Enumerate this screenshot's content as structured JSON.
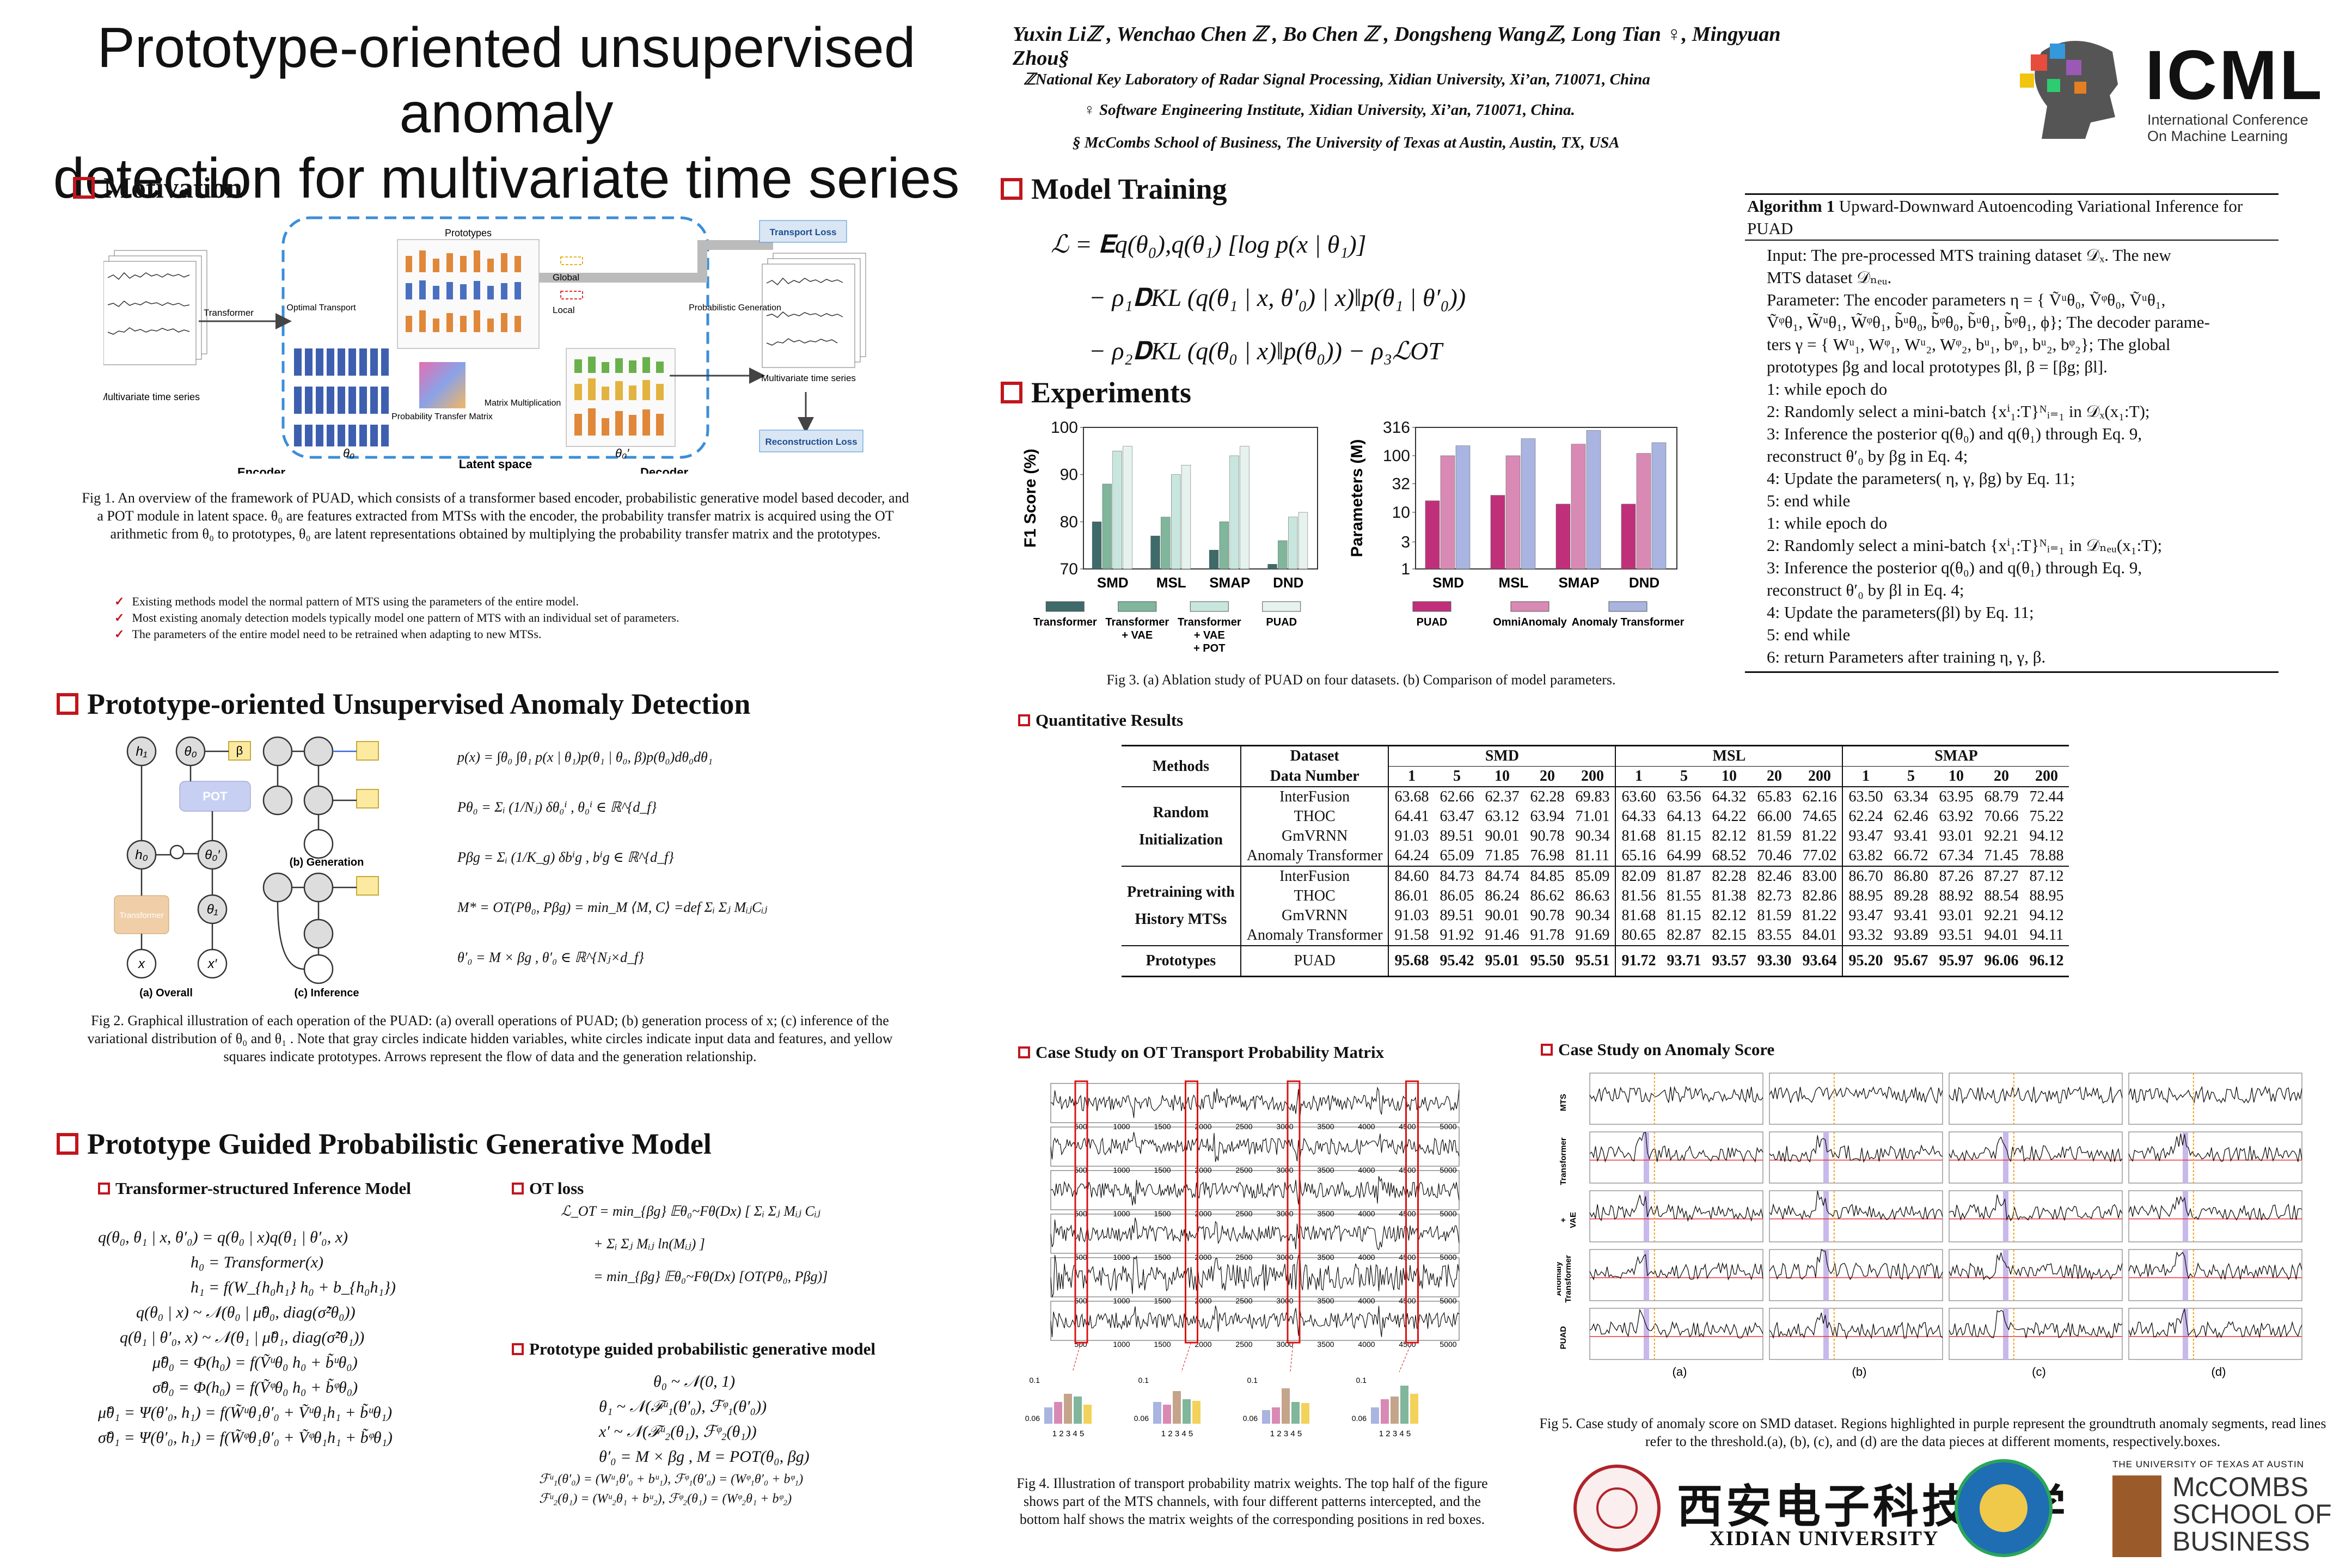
{
  "title_line1": "Prototype-oriented unsupervised anomaly",
  "title_line2": "detection for multivariate time series",
  "authors": "Yuxin Liℤ , Wenchao Chen ℤ , Bo Chen ℤ , Dongsheng Wangℤ, Long Tian ♀, Mingyuan Zhou§",
  "affil1": "ℤNational Key Laboratory of Radar Signal Processing, Xidian University, Xi’an, 710071, China",
  "affil2": "♀ Software Engineering Institute, Xidian University, Xi’an, 710071, China.",
  "affil3": "§ McCombs School of Business,  The University of Texas at Austin,  Austin, TX,  USA",
  "icml": {
    "name": "ICML",
    "line1": "International Conference",
    "line2": "On Machine Learning"
  },
  "sections": {
    "motivation": "Motivation",
    "puad": "Prototype-oriented Unsupervised Anomaly Detection",
    "pgpgm": "Prototype Guided Probabilistic Generative Model",
    "training": "Model Training",
    "experiments": "Experiments"
  },
  "fig1": {
    "labels": {
      "encoder": "Encoder",
      "decoder": "Decoder",
      "latent": "Latent space",
      "transformer": "Transformer",
      "ot": "Optimal Transport",
      "prototypes": "Prototypes",
      "global": "Global",
      "local": "Local",
      "ptm": "Probability Transfer Matrix",
      "mm": "Matrix Multiplication",
      "pg": "Probabilistic Generation",
      "mts": "Multivariate time series",
      "rts": "Multivariate time series",
      "tl": "Transport Loss",
      "rl": "Reconstruction Loss",
      "theta0": "θ₀",
      "theta0p": "θ₀′"
    },
    "caption": "Fig 1. An overview of the framework of PUAD, which consists of a transformer based encoder, probabilistic generative model based decoder, and a POT module in latent space. θ₀ are features extracted from MTSs with the encoder, the probability transfer matrix is acquired using the OT arithmetic from θ₀ to prototypes, θ₀ are latent representations obtained by multiplying the probability transfer matrix and the prototypes."
  },
  "bullets": [
    "Existing methods model the normal pattern of MTS using the parameters of the entire model.",
    "Most existing anomaly detection models typically model one pattern of MTS with an individual set of parameters.",
    "The parameters of the entire model need to be retrained when adapting to new MTSs."
  ],
  "fig2": {
    "labels": {
      "a": "(a) Overall",
      "b": "(b) Generation",
      "c": "(c) Inference",
      "transformer": "Transformer",
      "pot": "POT"
    },
    "caption": "Fig 2. Graphical illustration of each operation of the PUAD: (a) overall operations of PUAD; (b) generation process of x; (c) inference of the variational distribution of θ₀ and θ₁ . Note that gray circles indicate hidden variables, white circles indicate input data and features, and yellow squares indicate prototypes. Arrows represent the flow of data and the generation relationship."
  },
  "puad_eqs": [
    "p(x) = ∫θ₀ ∫θ₁ p(x | θ₁)p(θ₁ | θ₀, β)p(θ₀)dθ₀dθ₁",
    "Pθ₀ = Σᵢ (1/Nⱼ) δθ₀ⁱ ,  θ₀ⁱ ∈ ℝ^{d_f}",
    "Pβg = Σᵢ (1/K_g) δbⁱg ,  bⁱg ∈ ℝ^{d_f}",
    "M* = OT(Pθ₀, Pβg) = min_M ⟨M, C⟩ =def Σᵢ Σⱼ MᵢⱼCᵢⱼ",
    "θ′₀ = M × βg ,  θ′₀ ∈ ℝ^{Nⱼ×d_f}"
  ],
  "inference": {
    "title": "Transformer-structured Inference Model",
    "eqs": [
      "q(θ₀, θ₁ | x, θ′₀) = q(θ₀ | x)q(θ₁ | θ′₀, x)",
      "h₀ = Transformer(x)",
      "h₁ = f(W_{h₀h₁} h₀ + b_{h₀h₁})",
      "q(θ₀ | x) ~ 𝒩(θ₀ | μ̃θ₀, diag(σ̃²θ₀))",
      "q(θ₁ | θ′₀, x) ~ 𝒩(θ₁ | μ̃θ₁, diag(σ̃²θ₁))",
      "μ̃θ₀ = Φ(h₀) = f(Ṽᵘθ₀ h₀ + b̃ᵘθ₀)",
      "σ̃θ₀ = Φ(h₀) = f(Ṽᵠθ₀ h₀ + b̃ᵠθ₀)",
      "μ̃θ₁ = Ψ(θ′₀, h₁) = f(W̃ᵘθ₁θ′₀ + Ṽᵘθ₁h₁ + b̃ᵘθ₁)",
      "σ̃θ₁ = Ψ(θ′₀, h₁) = f(W̃ᵠθ₁θ′₀ + Ṽᵠθ₁h₁ + b̃ᵠθ₁)"
    ]
  },
  "otloss": {
    "title": "OT loss",
    "eqs": [
      "ℒ_OT = min_{βg} 𝔼θ₀~Fθ(Dx) [ Σᵢ Σⱼ Mᵢⱼ Cᵢⱼ",
      "+ Σᵢ Σⱼ Mᵢⱼ ln(Mᵢⱼ) ]",
      "= min_{βg} 𝔼θ₀~Fθ(Dx) [OT(Pθ₀, Pβg)]"
    ]
  },
  "genmodel": {
    "title": "Prototype guided probabilistic generative model",
    "eqs": [
      "θ₀ ~ 𝒩(0, 1)",
      "θ₁ ~ 𝒩(ℱᵘ₁(θ′₀), ℱᵠ₁(θ′₀))",
      "x′ ~ 𝒩(ℱᵘ₂(θ₁), ℱᵠ₂(θ₁))",
      "θ′₀ = M × βg , M = POT(θ₀, βg)",
      "ℱᵘ₁(θ′₀) = (Wᵘ₁θ′₀ + bᵘ₁), ℱᵠ₁(θ′₀) = (Wᵠ₁θ′₀ + bᵠ₁)",
      "ℱᵘ₂(θ₁) = (Wᵘ₂θ₁ + bᵘ₂), ℱᵠ₂(θ₁) = (Wᵠ₂θ₁ + bᵠ₂)"
    ]
  },
  "training_eqs": [
    "ℒ = 𝐄q(θ₀),q(θ₁) [log p(x | θ₁)]",
    "− ρ₁𝐃KL (q(θ₁ | x, θ′₀) | x)‖p(θ₁ | θ′₀))",
    "− ρ₂𝐃KL (q(θ₀ | x)‖p(θ₀)) − ρ₃ℒOT"
  ],
  "algorithm": {
    "title_bold": "Algorithm 1",
    "title_rest": "Upward-Downward Autoencoding Variational Inference for PUAD",
    "lines": [
      "Input: The pre-processed MTS training dataset 𝒟ₓ. The new",
      "MTS dataset 𝒟ₙₑᵤ.",
      "Parameter: The encoder parameters η = { Ṽᵘθ₀, Ṽᵠθ₀, Ṽᵘθ₁,",
      "Ṽᵠθ₁, W̃ᵘθ₁, W̃ᵠθ₁, b̃ᵘθ₀, b̃ᵠθ₀, b̃ᵘθ₁, b̃ᵠθ₁, ϕ}; The decoder parame-",
      "ters γ = { Wᵘ₁, Wᵠ₁, Wᵘ₂, Wᵠ₂, bᵘ₁, bᵠ₁, bᵘ₂, bᵠ₂}; The global",
      "prototypes βg and local prototypes βl, β = [βg; βl].",
      "1:  while epoch do",
      "2:      Randomly select a mini-batch {xⁱ₁:T}ᴺᵢ₌₁ in 𝒟ₓ(x₁:T);",
      "3:      Inference the posterior q(θ₀) and q(θ₁) through Eq. 9,",
      "           reconstruct θ′₀ by βg in Eq. 4;",
      "4:      Update the parameters( η, γ, βg) by Eq. 11;",
      "5:  end while",
      "1:  while epoch do",
      "2:      Randomly select a mini-batch {xⁱ₁:T}ᴺᵢ₌₁ in 𝒟ₙₑᵤ(x₁:T);",
      "3:      Inference the posterior q(θ₀) and q(θ₁) through Eq. 9,",
      "           reconstruct θ′₀ by βl in Eq. 4;",
      "4:      Update the parameters(βl) by Eq. 11;",
      "5:  end while",
      "6:  return Parameters after training η, γ, β."
    ]
  },
  "fig3": {
    "caption": "Fig 3. (a) Ablation study of PUAD on four datasets. (b) Comparison of model parameters.",
    "a_label": "(a)",
    "b_label": "(b)"
  },
  "chart_data": [
    {
      "type": "bar",
      "title": "",
      "ylabel": "F1 Score (%)",
      "categories": [
        "SMD",
        "MSL",
        "SMAP",
        "DND"
      ],
      "ylim": [
        70,
        100
      ],
      "yticks": [
        "100",
        "90",
        "80",
        "70"
      ],
      "series": [
        {
          "name": "Transformer",
          "color": "#3e6a6a",
          "values": [
            80,
            77,
            74,
            71
          ]
        },
        {
          "name": "Transformer + VAE",
          "color": "#80b69c",
          "values": [
            88,
            81,
            80,
            76
          ]
        },
        {
          "name": "Transformer + VAE + POT",
          "color": "#c8e6de",
          "values": [
            95,
            90,
            94,
            81
          ]
        },
        {
          "name": "PUAD",
          "color": "#e6f2ee",
          "values": [
            96,
            92,
            96,
            82
          ]
        }
      ]
    },
    {
      "type": "bar",
      "title": "",
      "ylabel": "Parameters (M)",
      "scale": "log",
      "categories": [
        "SMD",
        "MSL",
        "SMAP",
        "DND"
      ],
      "ylim": [
        1,
        316
      ],
      "yticks": [
        "316",
        "100",
        "32",
        "10",
        "3",
        "1"
      ],
      "series": [
        {
          "name": "PUAD",
          "color": "#c0307a",
          "values": [
            16,
            20,
            14,
            14
          ]
        },
        {
          "name": "OmniAnomaly",
          "color": "#d88ab4",
          "values": [
            100,
            100,
            160,
            110
          ]
        },
        {
          "name": "Anomaly Transformer",
          "color": "#a9b4e0",
          "values": [
            150,
            200,
            280,
            170
          ]
        }
      ]
    }
  ],
  "quant": {
    "title": "Quantitative Results",
    "h_methods": "Methods",
    "h_dataset": "Dataset",
    "h_datanum": "Data Number",
    "datasets": [
      "SMD",
      "MSL",
      "SMAP"
    ],
    "nums": [
      "1",
      "5",
      "10",
      "20",
      "200"
    ],
    "groups": [
      {
        "label1": "Random",
        "label2": "Initialization",
        "rows": [
          {
            "m": "InterFusion",
            "v": [
              "63.68",
              "62.66",
              "62.37",
              "62.28",
              "69.83",
              "63.60",
              "63.56",
              "64.32",
              "65.83",
              "62.16",
              "63.50",
              "63.34",
              "63.95",
              "68.79",
              "72.44"
            ]
          },
          {
            "m": "THOC",
            "v": [
              "64.41",
              "63.47",
              "63.12",
              "63.94",
              "71.01",
              "64.33",
              "64.13",
              "64.22",
              "66.00",
              "74.65",
              "62.24",
              "62.46",
              "63.92",
              "70.66",
              "75.22"
            ]
          },
          {
            "m": "GmVRNN",
            "v": [
              "91.03",
              "89.51",
              "90.01",
              "90.78",
              "90.34",
              "81.68",
              "81.15",
              "82.12",
              "81.59",
              "81.22",
              "93.47",
              "93.41",
              "93.01",
              "92.21",
              "94.12"
            ]
          },
          {
            "m": "Anomaly Transformer",
            "v": [
              "64.24",
              "65.09",
              "71.85",
              "76.98",
              "81.11",
              "65.16",
              "64.99",
              "68.52",
              "70.46",
              "77.02",
              "63.82",
              "66.72",
              "67.34",
              "71.45",
              "78.88"
            ]
          }
        ]
      },
      {
        "label1": "Pretraining with",
        "label2": "History MTSs",
        "rows": [
          {
            "m": "InterFusion",
            "v": [
              "84.60",
              "84.73",
              "84.74",
              "84.85",
              "85.09",
              "82.09",
              "81.87",
              "82.28",
              "82.46",
              "83.00",
              "86.70",
              "86.80",
              "87.26",
              "87.27",
              "87.12"
            ]
          },
          {
            "m": "THOC",
            "v": [
              "86.01",
              "86.05",
              "86.24",
              "86.62",
              "86.63",
              "81.56",
              "81.55",
              "81.38",
              "82.73",
              "82.86",
              "88.95",
              "89.28",
              "88.92",
              "88.54",
              "88.95"
            ]
          },
          {
            "m": "GmVRNN",
            "v": [
              "91.03",
              "89.51",
              "90.01",
              "90.78",
              "90.34",
              "81.68",
              "81.15",
              "82.12",
              "81.59",
              "81.22",
              "93.47",
              "93.41",
              "93.01",
              "92.21",
              "94.12"
            ]
          },
          {
            "m": "Anomaly Transformer",
            "v": [
              "91.58",
              "91.92",
              "91.46",
              "91.78",
              "91.69",
              "80.65",
              "82.87",
              "82.15",
              "83.55",
              "84.01",
              "93.32",
              "93.89",
              "93.51",
              "94.01",
              "94.11"
            ]
          }
        ]
      }
    ],
    "proto": {
      "label": "Prototypes",
      "m": "PUAD",
      "v": [
        "95.68",
        "95.42",
        "95.01",
        "95.50",
        "95.51",
        "91.72",
        "93.71",
        "93.57",
        "93.30",
        "93.64",
        "95.20",
        "95.67",
        "95.97",
        "96.06",
        "96.12"
      ]
    }
  },
  "case_ot": {
    "title": "Case Study on OT Transport Probability Matrix",
    "caption": "Fig 4. Illustration of transport probability matrix weights. The top half of the figure shows part of the MTS channels, with four different patterns intercepted, and the bottom half shows the matrix weights of the corresponding positions in red boxes.",
    "xticks": [
      "500",
      "1000",
      "1500",
      "2000",
      "2500",
      "3000",
      "3500",
      "4000",
      "4500",
      "5000"
    ],
    "bar_ticks": "1 2 3 4 5"
  },
  "case_score": {
    "title": "Case Study on Anomaly Score",
    "caption": "Fig 5. Case study of anomaly score on SMD dataset. Regions highlighted in purple represent the groundtruth anomaly segments, read lines refer to the threshold.(a), (b), (c), and (d) are the data pieces at different moments, respectively.boxes.",
    "rows": [
      "MTS",
      "Transformer",
      "Transformer + VAE",
      "Anomaly Transformer",
      "PUAD"
    ],
    "cols": [
      "(a)",
      "(b)",
      "(c)",
      "(d)"
    ]
  },
  "logos": {
    "xidian_cn": "西安电子科技大学",
    "xidian_en": "XIDIAN UNIVERSITY",
    "ut": "THE UNIVERSITY OF TEXAS AT AUSTIN",
    "mccombs1": "McCOMBS",
    "mccombs2": "SCHOOL OF",
    "mccombs3": "BUSINESS"
  }
}
